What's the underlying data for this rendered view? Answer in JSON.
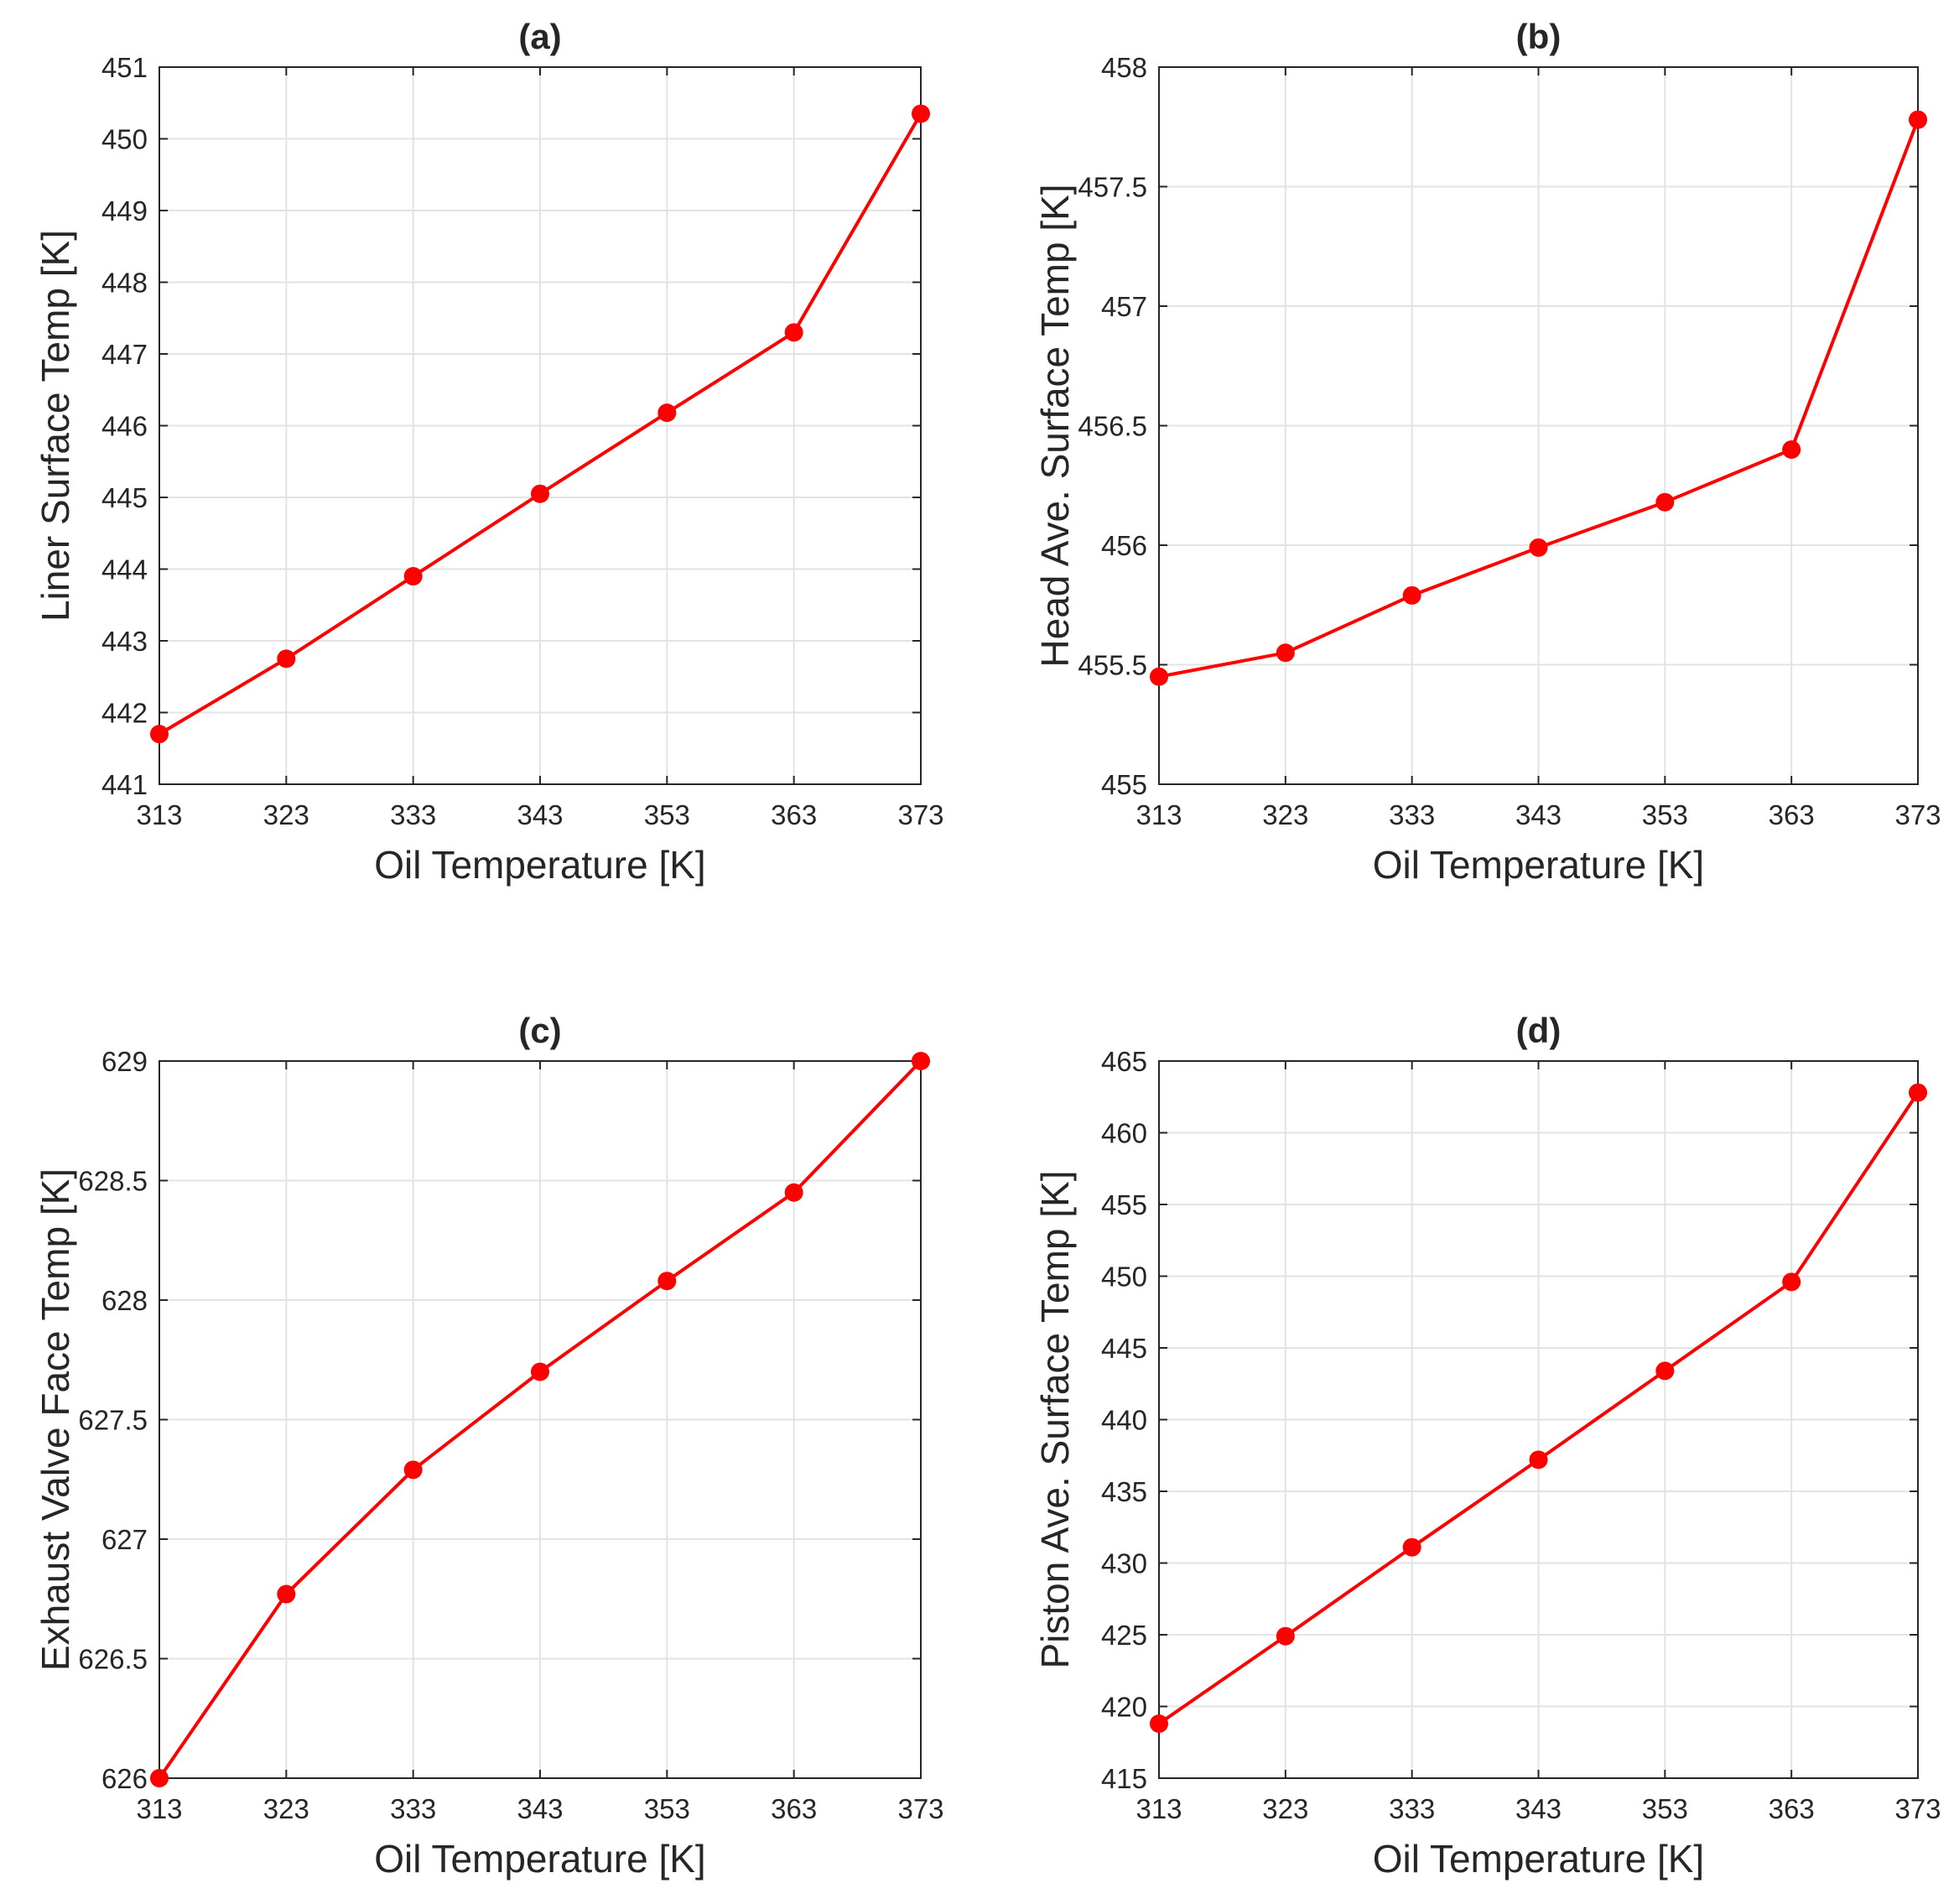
{
  "figure": {
    "series_color": "#ff0000",
    "grid_color": "#e3e3e3",
    "axis_color": "#262626"
  },
  "chart_data": [
    {
      "id": "a",
      "type": "line",
      "title": "(a)",
      "xlabel": "Oil Temperature [K]",
      "ylabel": "Liner Surface Temp [K]",
      "x": [
        313,
        323,
        333,
        343,
        353,
        363,
        373
      ],
      "y": [
        441.7,
        442.75,
        443.9,
        445.05,
        446.18,
        447.3,
        450.35
      ],
      "xlim": [
        313,
        373
      ],
      "ylim": [
        441,
        451
      ],
      "xticks": [
        313,
        323,
        333,
        343,
        353,
        363,
        373
      ],
      "yticks": [
        441,
        442,
        443,
        444,
        445,
        446,
        447,
        448,
        449,
        450,
        451
      ],
      "ytick_labels": [
        "441",
        "442",
        "443",
        "444",
        "445",
        "446",
        "447",
        "448",
        "449",
        "450",
        "451"
      ],
      "grid": true,
      "marker": "circle"
    },
    {
      "id": "b",
      "type": "line",
      "title": "(b)",
      "xlabel": "Oil Temperature [K]",
      "ylabel": "Head Ave. Surface Temp [K]",
      "x": [
        313,
        323,
        333,
        343,
        353,
        363,
        373
      ],
      "y": [
        455.45,
        455.55,
        455.79,
        455.99,
        456.18,
        456.4,
        457.78
      ],
      "xlim": [
        313,
        373
      ],
      "ylim": [
        455,
        458
      ],
      "xticks": [
        313,
        323,
        333,
        343,
        353,
        363,
        373
      ],
      "yticks": [
        455,
        455.5,
        456,
        456.5,
        457,
        457.5,
        458
      ],
      "ytick_labels": [
        "455",
        "455.5",
        "456",
        "456.5",
        "457",
        "457.5",
        "458"
      ],
      "grid": true,
      "marker": "circle"
    },
    {
      "id": "c",
      "type": "line",
      "title": "(c)",
      "xlabel": "Oil Temperature [K]",
      "ylabel": "Exhaust Valve Face Temp [K]",
      "x": [
        313,
        323,
        333,
        343,
        353,
        363,
        373
      ],
      "y": [
        626.0,
        626.77,
        627.29,
        627.7,
        628.08,
        628.45,
        629.0
      ],
      "xlim": [
        313,
        373
      ],
      "ylim": [
        626,
        629
      ],
      "xticks": [
        313,
        323,
        333,
        343,
        353,
        363,
        373
      ],
      "yticks": [
        626,
        626.5,
        627,
        627.5,
        628,
        628.5,
        629
      ],
      "ytick_labels": [
        "626",
        "626.5",
        "627",
        "627.5",
        "628",
        "628.5",
        "629"
      ],
      "grid": true,
      "marker": "circle"
    },
    {
      "id": "d",
      "type": "line",
      "title": "(d)",
      "xlabel": "Oil Temperature [K]",
      "ylabel": "Piston Ave. Surface Temp [K]",
      "x": [
        313,
        323,
        333,
        343,
        353,
        363,
        373
      ],
      "y": [
        418.8,
        424.9,
        431.1,
        437.2,
        443.4,
        449.6,
        462.8
      ],
      "xlim": [
        313,
        373
      ],
      "ylim": [
        415,
        465
      ],
      "xticks": [
        313,
        323,
        333,
        343,
        353,
        363,
        373
      ],
      "yticks": [
        415,
        420,
        425,
        430,
        435,
        440,
        445,
        450,
        455,
        460,
        465
      ],
      "ytick_labels": [
        "415",
        "420",
        "425",
        "430",
        "435",
        "440",
        "445",
        "450",
        "455",
        "460",
        "465"
      ],
      "grid": true,
      "marker": "circle"
    }
  ]
}
